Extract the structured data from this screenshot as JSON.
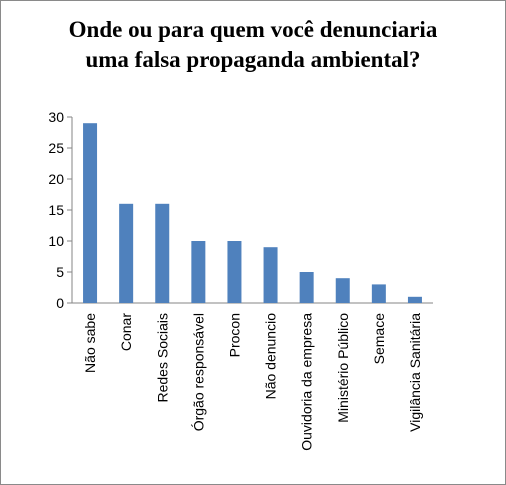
{
  "chart_data": {
    "type": "bar",
    "title": [
      "Onde ou para quem você denunciaria",
      "uma falsa propaganda ambiental?"
    ],
    "categories": [
      "Não sabe",
      "Conar",
      "Redes Sociais",
      "Órgão responsável",
      "Procon",
      "Não denuncio",
      "Ouvidoria da empresa",
      "Ministério Público",
      "Semace",
      "Vigilância Sanitária"
    ],
    "values": [
      29,
      16,
      16,
      10,
      10,
      9,
      5,
      4,
      3,
      1
    ],
    "ylim": [
      0,
      30
    ],
    "yticks": [
      0,
      5,
      10,
      15,
      20,
      25,
      30
    ],
    "grid": false,
    "legend": "none",
    "bar_color": "#4f81bd"
  }
}
